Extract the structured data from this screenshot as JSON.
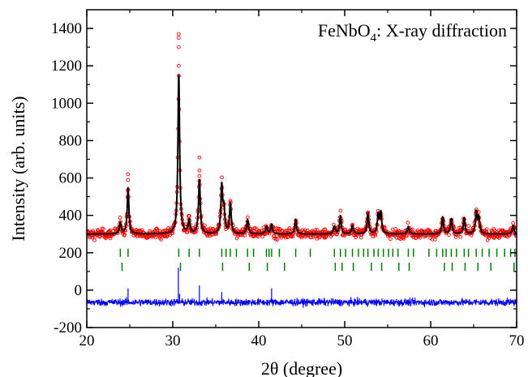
{
  "chart_data": {
    "type": "scatter",
    "annotation": {
      "main": "FeNbO",
      "subscript": "4",
      "rest": ": X-ray diffraction"
    },
    "xlabel": "2θ (degree)",
    "ylabel": "Intensity (arb. units)",
    "xlim": [
      20,
      70
    ],
    "ylim": [
      -200,
      1500
    ],
    "xticks": [
      20,
      30,
      40,
      50,
      60,
      70
    ],
    "yticks": [
      -200,
      0,
      200,
      400,
      600,
      800,
      1000,
      1200,
      1400
    ],
    "xtick_labels": [
      "20",
      "30",
      "40",
      "50",
      "60",
      "70"
    ],
    "ytick_labels": [
      "-200",
      "0",
      "200",
      "400",
      "600",
      "800",
      "1000",
      "1200",
      "1400"
    ],
    "grid": false,
    "colors": {
      "observed": "#ff0000",
      "calculated": "#000000",
      "difference": "#0000ff",
      "bragg": "#008000"
    },
    "background_level": 300,
    "peaks": [
      {
        "x": 23.9,
        "h": 60
      },
      {
        "x": 24.8,
        "h": 240
      },
      {
        "x": 30.7,
        "h": 850
      },
      {
        "x": 31.9,
        "h": 70
      },
      {
        "x": 33.1,
        "h": 290
      },
      {
        "x": 35.7,
        "h": 250
      },
      {
        "x": 35.95,
        "h": 120
      },
      {
        "x": 36.7,
        "h": 160
      },
      {
        "x": 38.7,
        "h": 75
      },
      {
        "x": 40.9,
        "h": 40
      },
      {
        "x": 41.5,
        "h": 50
      },
      {
        "x": 44.3,
        "h": 75
      },
      {
        "x": 48.8,
        "h": 40
      },
      {
        "x": 49.5,
        "h": 95
      },
      {
        "x": 50.9,
        "h": 45
      },
      {
        "x": 52.7,
        "h": 110
      },
      {
        "x": 53.9,
        "h": 100
      },
      {
        "x": 54.2,
        "h": 110
      },
      {
        "x": 57.4,
        "h": 40
      },
      {
        "x": 61.4,
        "h": 90
      },
      {
        "x": 62.4,
        "h": 80
      },
      {
        "x": 63.9,
        "h": 85
      },
      {
        "x": 65.3,
        "h": 115
      },
      {
        "x": 65.6,
        "h": 85
      },
      {
        "x": 69.6,
        "h": 45
      }
    ],
    "observed_outliers": [
      {
        "x": 24.8,
        "y": 620
      },
      {
        "x": 24.8,
        "y": 590
      },
      {
        "x": 30.7,
        "y": 1370
      },
      {
        "x": 30.7,
        "y": 1350
      },
      {
        "x": 30.7,
        "y": 1300
      },
      {
        "x": 30.7,
        "y": 1200
      },
      {
        "x": 33.1,
        "y": 710
      },
      {
        "x": 33.1,
        "y": 640
      },
      {
        "x": 33.1,
        "y": 610
      }
    ],
    "bragg_row1": [
      23.9,
      24.8,
      30.7,
      31.9,
      33.1,
      35.7,
      36.2,
      36.7,
      37.4,
      38.7,
      39.4,
      40.9,
      41.2,
      41.5,
      42.4,
      44.3,
      46.0,
      48.8,
      49.5,
      50.1,
      50.9,
      51.6,
      52.2,
      52.7,
      53.4,
      53.9,
      54.5,
      55.1,
      55.6,
      56.2,
      57.4,
      58.0,
      59.8,
      60.7,
      61.4,
      61.8,
      62.4,
      63.0,
      63.9,
      64.4,
      65.3,
      66.0,
      66.8,
      67.7,
      68.6,
      69.3,
      69.8
    ],
    "bragg_row2": [
      24.1,
      30.9,
      35.8,
      38.9,
      41.0,
      43.0,
      48.9,
      49.7,
      51.0,
      53.1,
      54.3,
      56.3,
      57.5,
      61.6,
      62.5,
      64.0,
      65.5,
      67.0,
      69.7
    ],
    "bragg_rows_y": [
      200,
      125
    ],
    "difference_offset": -65,
    "difference_spikes": [
      {
        "x": 30.65,
        "y": 120
      },
      {
        "x": 30.8,
        "y": -20
      },
      {
        "x": 24.8,
        "y": 10
      },
      {
        "x": 33.1,
        "y": 25
      },
      {
        "x": 35.7,
        "y": -10
      },
      {
        "x": 41.5,
        "y": 10
      }
    ]
  }
}
